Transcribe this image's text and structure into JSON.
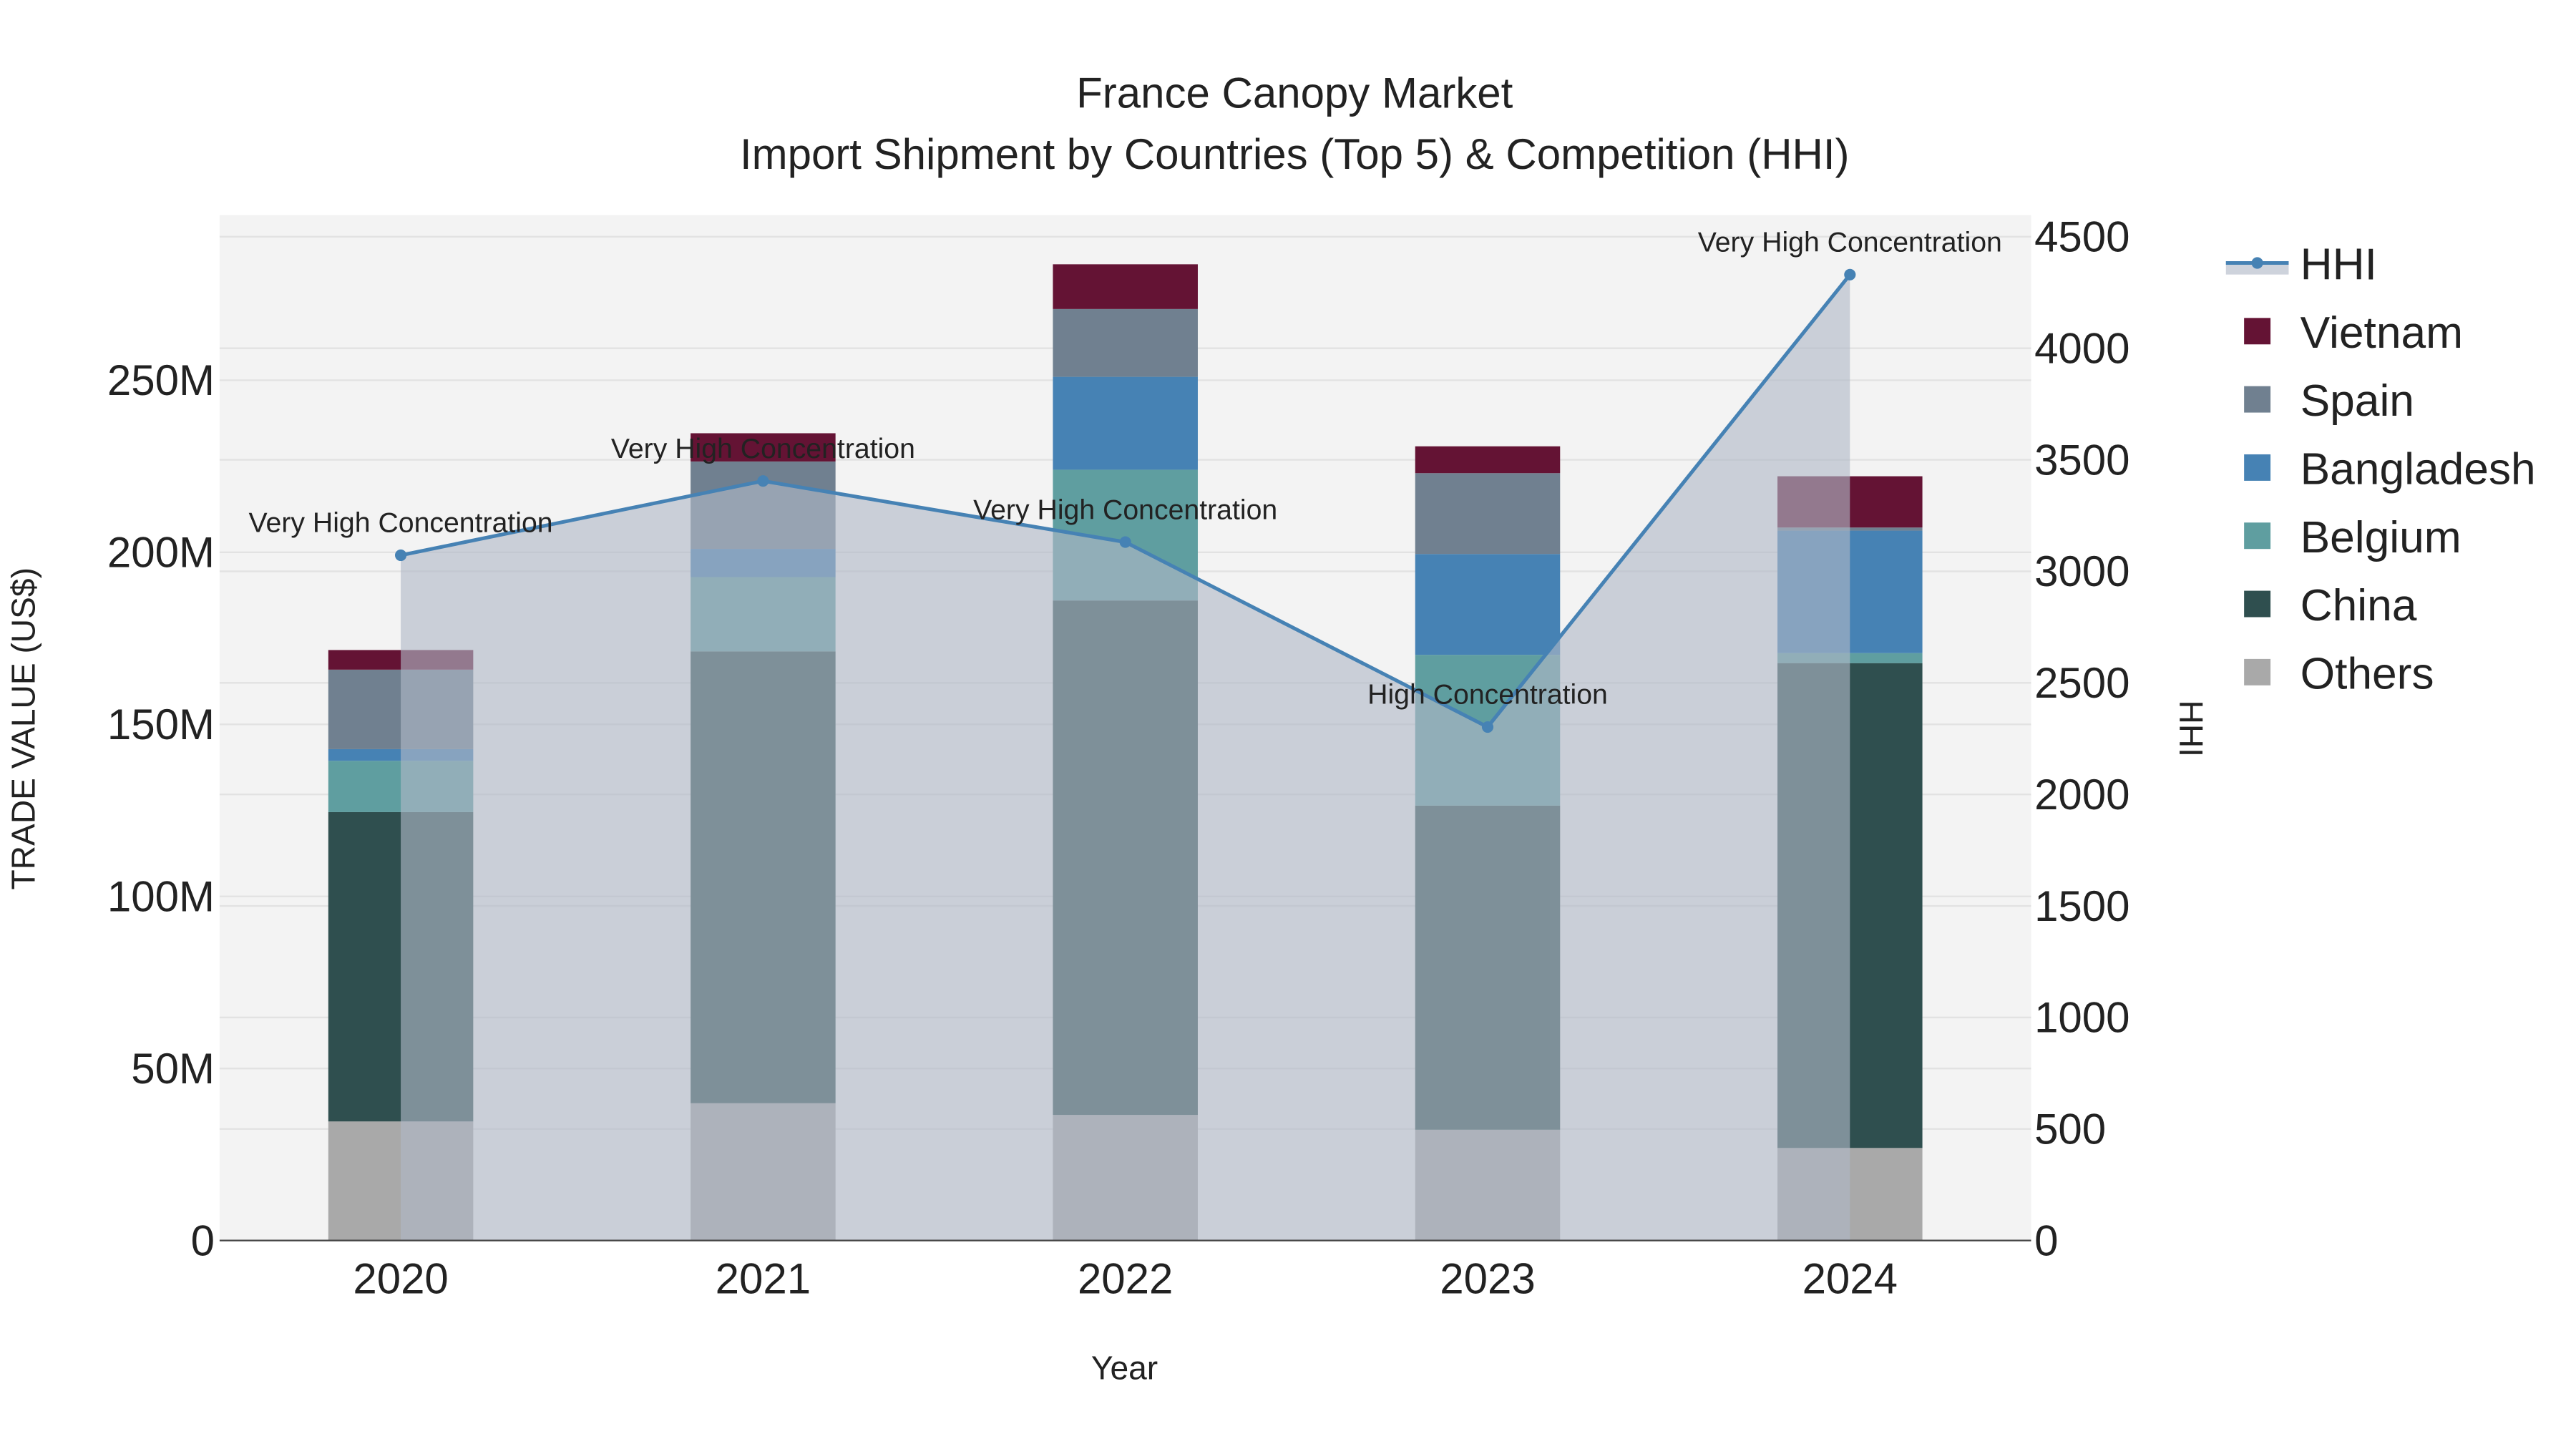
{
  "chart_data": {
    "type": "bar",
    "title": "France Canopy Market",
    "subtitle": "Import Shipment by Countries (Top 5) & Competition (HHI)",
    "xlabel": "Year",
    "ylabel": "TRADE VALUE (US$)",
    "y2label": "HHI",
    "categories": [
      "2020",
      "2021",
      "2022",
      "2023",
      "2024"
    ],
    "ylim": [
      0,
      298
    ],
    "y2lim": [
      0,
      4597
    ],
    "yticks": [
      0,
      50,
      100,
      150,
      200,
      250
    ],
    "ytick_labels": [
      "0",
      "50M",
      "100M",
      "150M",
      "200M",
      "250M"
    ],
    "y2ticks": [
      0,
      500,
      1000,
      1500,
      2000,
      2500,
      3000,
      3500,
      4000,
      4500
    ],
    "y2tick_labels": [
      "0",
      "500",
      "1000",
      "1500",
      "2000",
      "2500",
      "3000",
      "3500",
      "4000",
      "4500"
    ],
    "stacked": true,
    "units": "million US$",
    "series": [
      {
        "name": "Others",
        "color": "#A9A9A9",
        "values": [
          34.6,
          39.9,
          36.5,
          32.2,
          26.9
        ]
      },
      {
        "name": "China",
        "color": "#2F4F4F",
        "values": [
          89.9,
          131.3,
          149.5,
          94.2,
          140.9
        ]
      },
      {
        "name": "Belgium",
        "color": "#5F9EA0",
        "values": [
          14.9,
          21.6,
          38.0,
          43.8,
          2.9
        ]
      },
      {
        "name": "Bangladesh",
        "color": "#4682B4",
        "values": [
          3.4,
          8.2,
          27.0,
          29.3,
          35.6
        ]
      },
      {
        "name": "Spain",
        "color": "#708090",
        "values": [
          23.1,
          25.4,
          19.7,
          23.5,
          0.9
        ]
      },
      {
        "name": "Vietnam",
        "color": "#641334",
        "values": [
          5.7,
          8.2,
          13.0,
          7.8,
          14.9
        ]
      }
    ],
    "hhi": {
      "name": "HHI",
      "color": "#4682B4",
      "values": [
        3072,
        3405,
        3131,
        2302,
        4330
      ],
      "annotations": [
        "Very High Concentration",
        "Very High Concentration",
        "Very High Concentration",
        "High Concentration",
        "Very High Concentration"
      ]
    },
    "legend": {
      "placement": "right",
      "entries": [
        "HHI",
        "Vietnam",
        "Spain",
        "Bangladesh",
        "Belgium",
        "China",
        "Others"
      ]
    },
    "grid": true
  }
}
